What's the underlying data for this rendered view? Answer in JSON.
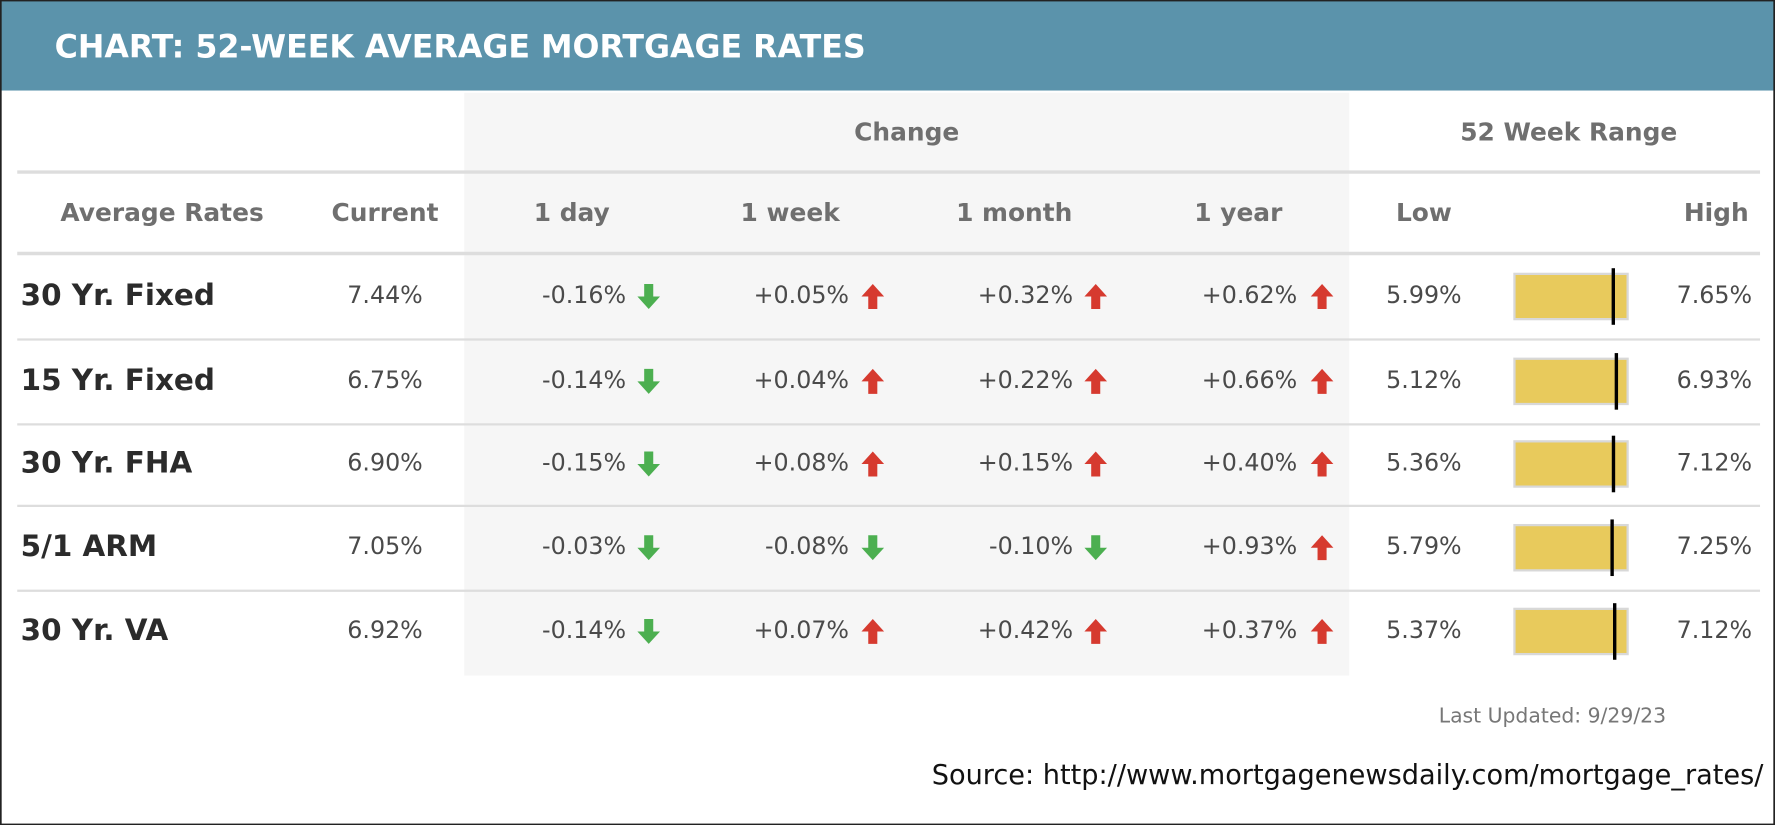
{
  "header": {
    "title": "CHART: 52-WEEK AVERAGE MORTGAGE RATES"
  },
  "table": {
    "group_headers": {
      "change": "Change",
      "range": "52 Week Range"
    },
    "columns": [
      "Average Rates",
      "Current",
      "1 day",
      "1 week",
      "1 month",
      "1 year",
      "Low",
      "High"
    ],
    "rows": [
      {
        "name": "30 Yr. Fixed",
        "current": {
          "value": 7.44,
          "label": "7.44%"
        },
        "changes": [
          {
            "value": -0.16,
            "label": "-0.16%"
          },
          {
            "value": 0.05,
            "label": "+0.05%"
          },
          {
            "value": 0.32,
            "label": "+0.32%"
          },
          {
            "value": 0.62,
            "label": "+0.62%"
          }
        ],
        "low": {
          "value": 5.99,
          "label": "5.99%"
        },
        "high": {
          "value": 7.65,
          "label": "7.65%"
        }
      },
      {
        "name": "15 Yr. Fixed",
        "current": {
          "value": 6.75,
          "label": "6.75%"
        },
        "changes": [
          {
            "value": -0.14,
            "label": "-0.14%"
          },
          {
            "value": 0.04,
            "label": "+0.04%"
          },
          {
            "value": 0.22,
            "label": "+0.22%"
          },
          {
            "value": 0.66,
            "label": "+0.66%"
          }
        ],
        "low": {
          "value": 5.12,
          "label": "5.12%"
        },
        "high": {
          "value": 6.93,
          "label": "6.93%"
        }
      },
      {
        "name": "30 Yr. FHA",
        "current": {
          "value": 6.9,
          "label": "6.90%"
        },
        "changes": [
          {
            "value": -0.15,
            "label": "-0.15%"
          },
          {
            "value": 0.08,
            "label": "+0.08%"
          },
          {
            "value": 0.15,
            "label": "+0.15%"
          },
          {
            "value": 0.4,
            "label": "+0.40%"
          }
        ],
        "low": {
          "value": 5.36,
          "label": "5.36%"
        },
        "high": {
          "value": 7.12,
          "label": "7.12%"
        }
      },
      {
        "name": "5/1 ARM",
        "current": {
          "value": 7.05,
          "label": "7.05%"
        },
        "changes": [
          {
            "value": -0.03,
            "label": "-0.03%"
          },
          {
            "value": -0.08,
            "label": "-0.08%"
          },
          {
            "value": -0.1,
            "label": "-0.10%"
          },
          {
            "value": 0.93,
            "label": "+0.93%"
          }
        ],
        "low": {
          "value": 5.79,
          "label": "5.79%"
        },
        "high": {
          "value": 7.25,
          "label": "7.25%"
        }
      },
      {
        "name": "30 Yr. VA",
        "current": {
          "value": 6.92,
          "label": "6.92%"
        },
        "changes": [
          {
            "value": -0.14,
            "label": "-0.14%"
          },
          {
            "value": 0.07,
            "label": "+0.07%"
          },
          {
            "value": 0.42,
            "label": "+0.42%"
          },
          {
            "value": 0.37,
            "label": "+0.37%"
          }
        ],
        "low": {
          "value": 5.37,
          "label": "5.37%"
        },
        "high": {
          "value": 7.12,
          "label": "7.12%"
        }
      }
    ]
  },
  "footer": {
    "last_updated": "Last Updated: 9/29/23",
    "source": "Source: http://www.mortgagenewsdaily.com/mortgage_rates/"
  }
}
